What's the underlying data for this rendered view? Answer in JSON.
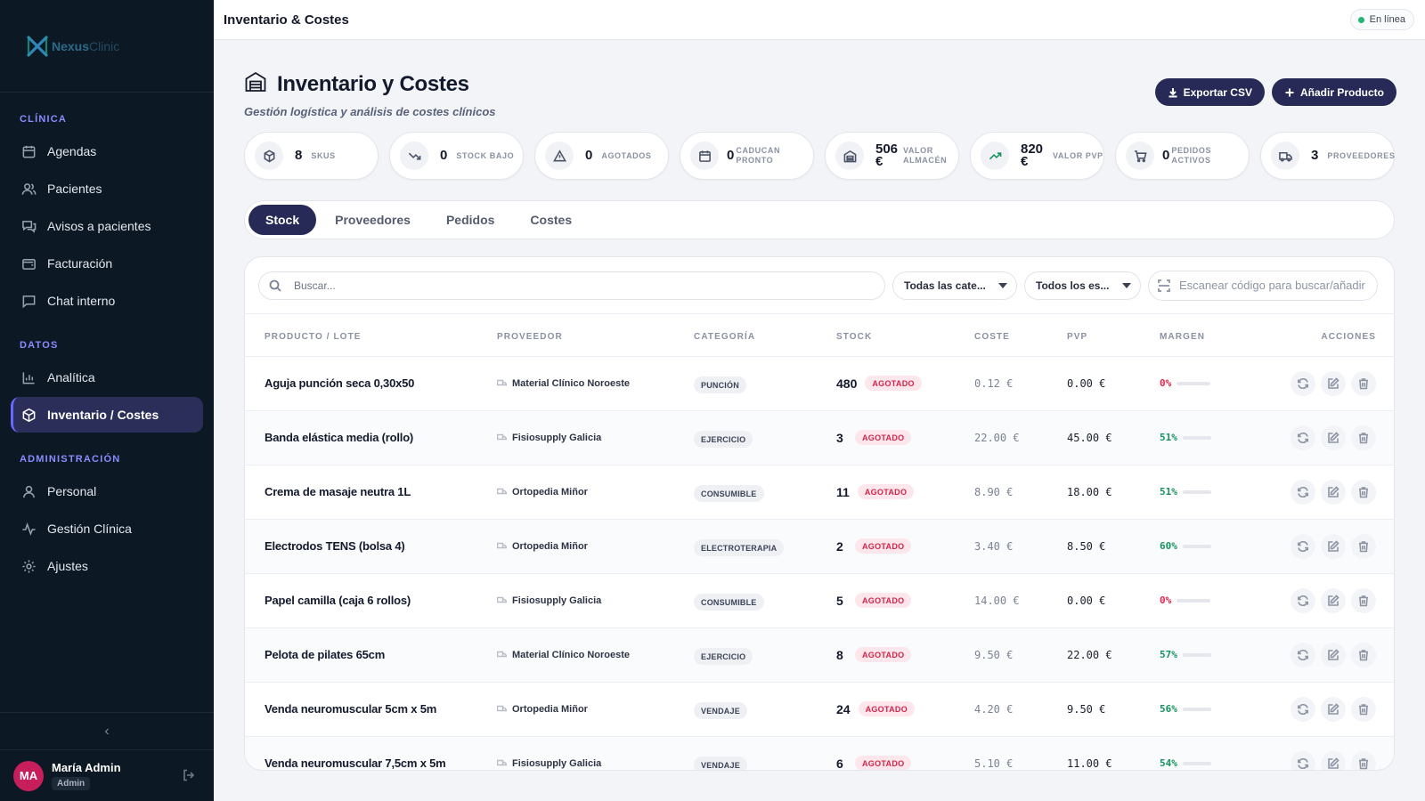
{
  "app": {
    "logo_bold": "Nexus",
    "logo_light": "Clinic"
  },
  "sidebar": {
    "sections": [
      {
        "title": "CLÍNICA",
        "items": [
          {
            "label": "Agendas",
            "icon": "calendar-icon"
          },
          {
            "label": "Pacientes",
            "icon": "users-icon"
          },
          {
            "label": "Avisos a pacientes",
            "icon": "messages-icon"
          },
          {
            "label": "Facturación",
            "icon": "wallet-icon"
          },
          {
            "label": "Chat interno",
            "icon": "chat-icon"
          }
        ]
      },
      {
        "title": "DATOS",
        "items": [
          {
            "label": "Analítica",
            "icon": "bar-chart-icon"
          },
          {
            "label": "Inventario / Costes",
            "icon": "box-icon",
            "active": true
          }
        ]
      },
      {
        "title": "ADMINISTRACIÓN",
        "items": [
          {
            "label": "Personal",
            "icon": "person-icon"
          },
          {
            "label": "Gestión Clínica",
            "icon": "activity-icon"
          },
          {
            "label": "Ajustes",
            "icon": "gear-icon"
          }
        ]
      }
    ],
    "collapse_glyph": "‹",
    "user": {
      "initials": "MA",
      "name": "María Admin",
      "role": "Admin"
    }
  },
  "topbar": {
    "title": "Inventario & Costes",
    "status": "En línea"
  },
  "page": {
    "title": "Inventario y Costes",
    "subtitle": "Gestión logística y análisis de costes clínicos",
    "export_label": "Exportar CSV",
    "add_label": "Añadir Producto"
  },
  "kpis": [
    {
      "value": "8",
      "label": "SKUS",
      "icon": "box-icon"
    },
    {
      "value": "0",
      "label": "STOCK BAJO",
      "icon": "trend-down-icon"
    },
    {
      "value": "0",
      "label": "AGOTADOS",
      "icon": "warning-icon"
    },
    {
      "value": "0",
      "label": "CADUCAN PRONTO",
      "icon": "calendar-icon"
    },
    {
      "value": "506 €",
      "label": "VALOR ALMACÉN",
      "icon": "warehouse-icon"
    },
    {
      "value": "820 €",
      "label": "VALOR PVP",
      "icon": "trend-up-icon"
    },
    {
      "value": "0",
      "label": "PEDIDOS ACTIVOS",
      "icon": "cart-icon"
    },
    {
      "value": "3",
      "label": "PROVEEDORES",
      "icon": "truck-icon"
    }
  ],
  "tabs": [
    "Stock",
    "Proveedores",
    "Pedidos",
    "Costes"
  ],
  "filters": {
    "search_placeholder": "Buscar...",
    "category_value": "Todas las cate...",
    "status_value": "Todos los es...",
    "scan_placeholder": "Escanear código para buscar/añadir"
  },
  "table": {
    "columns": [
      "PRODUCTO / LOTE",
      "PROVEEDOR",
      "CATEGORÍA",
      "STOCK",
      "COSTE",
      "PVP",
      "MARGEN",
      "ACCIONES"
    ],
    "status_label": "AGOTADO",
    "rows": [
      {
        "product": "Aguja punción seca 0,30x50",
        "supplier": "Material Clínico Noroeste",
        "category": "PUNCIÓN",
        "stock": "480",
        "cost": "0.12 €",
        "pvp": "0.00 €",
        "margin": "0%",
        "margin_value": 0
      },
      {
        "product": "Banda elástica media (rollo)",
        "supplier": "Fisiosupply Galicia",
        "category": "EJERCICIO",
        "stock": "3",
        "cost": "22.00 €",
        "pvp": "45.00 €",
        "margin": "51%",
        "margin_value": 51
      },
      {
        "product": "Crema de masaje neutra 1L",
        "supplier": "Ortopedia Miñor",
        "category": "CONSUMIBLE",
        "stock": "11",
        "cost": "8.90 €",
        "pvp": "18.00 €",
        "margin": "51%",
        "margin_value": 51
      },
      {
        "product": "Electrodos TENS (bolsa 4)",
        "supplier": "Ortopedia Miñor",
        "category": "ELECTROTERAPIA",
        "stock": "2",
        "cost": "3.40 €",
        "pvp": "8.50 €",
        "margin": "60%",
        "margin_value": 60
      },
      {
        "product": "Papel camilla (caja 6 rollos)",
        "supplier": "Fisiosupply Galicia",
        "category": "CONSUMIBLE",
        "stock": "5",
        "cost": "14.00 €",
        "pvp": "0.00 €",
        "margin": "0%",
        "margin_value": 0
      },
      {
        "product": "Pelota de pilates 65cm",
        "supplier": "Material Clínico Noroeste",
        "category": "EJERCICIO",
        "stock": "8",
        "cost": "9.50 €",
        "pvp": "22.00 €",
        "margin": "57%",
        "margin_value": 57
      },
      {
        "product": "Venda neuromuscular 5cm x 5m",
        "supplier": "Ortopedia Miñor",
        "category": "VENDAJE",
        "stock": "24",
        "cost": "4.20 €",
        "pvp": "9.50 €",
        "margin": "56%",
        "margin_value": 56
      },
      {
        "product": "Venda neuromuscular 7,5cm x 5m",
        "supplier": "Fisiosupply Galicia",
        "category": "VENDAJE",
        "stock": "6",
        "cost": "5.10 €",
        "pvp": "11.00 €",
        "margin": "54%",
        "margin_value": 54
      }
    ]
  },
  "colors": {
    "accent": "#272a56",
    "sidebar_bg": "#0c1824",
    "danger": "#d4244a",
    "success": "#149062"
  }
}
